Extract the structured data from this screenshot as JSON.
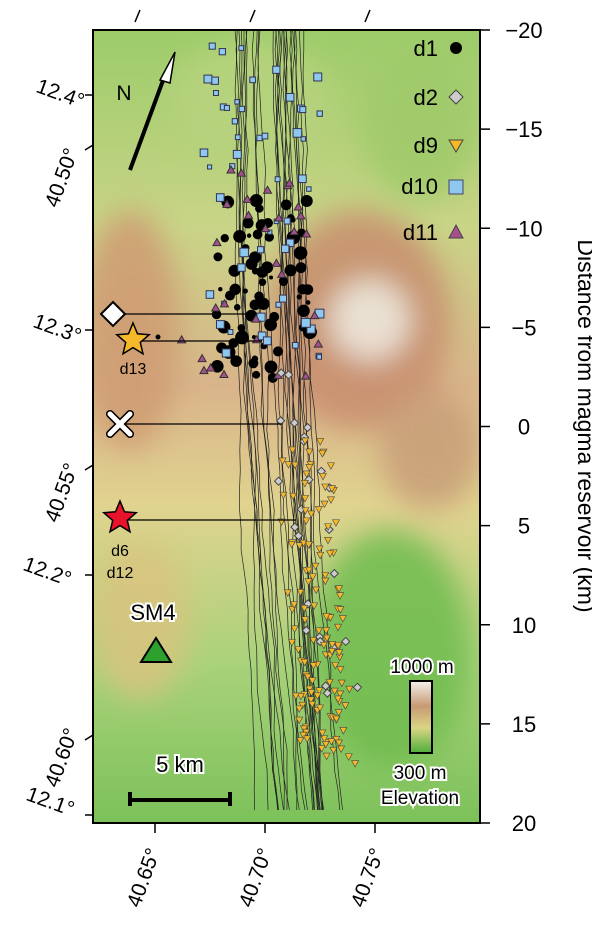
{
  "map": {
    "distance_axis": {
      "label": "Distance from magma reservoir (km)",
      "lim": [
        -20,
        20
      ],
      "ticks": [
        {
          "value": -20,
          "label": "−20"
        },
        {
          "value": -15,
          "label": "−15"
        },
        {
          "value": -10,
          "label": "−10"
        },
        {
          "value": -5,
          "label": "−5"
        },
        0,
        5,
        10,
        15,
        20
      ]
    },
    "latitude_labels": [
      "12.4°",
      "12.3°",
      "12.2°",
      "12.1°"
    ],
    "longitude_labels_left": [
      "40.50°",
      "40.55°",
      "40.60°"
    ],
    "longitude_labels_bottom": [
      "40.65°",
      "40.70°",
      "40.75°"
    ],
    "legend": [
      "d1",
      "d2",
      "d9",
      "d10",
      "d11"
    ],
    "north": "N",
    "annotations": {
      "d13": "d13",
      "d6": "d6",
      "d12": "d12",
      "station": "SM4"
    },
    "scale_bar": "5 km",
    "elevation": {
      "max": "1000 m",
      "min": "300 m",
      "title": "Elevation"
    }
  }
}
